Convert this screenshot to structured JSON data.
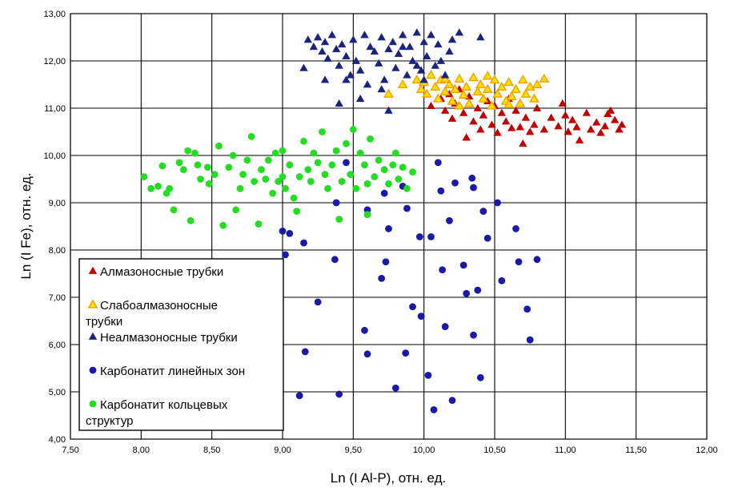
{
  "chart_data": {
    "type": "scatter",
    "xlabel": "Ln (I Al-P), отн. ед.",
    "ylabel": "Ln (I Fe), отн. ед.",
    "xlim": [
      7.5,
      12.0
    ],
    "ylim": [
      4.0,
      13.0
    ],
    "x_ticks": [
      "7,50",
      "8,00",
      "8,50",
      "9,00",
      "9,50",
      "10,00",
      "10,50",
      "11,00",
      "11,50",
      "12,00"
    ],
    "y_ticks": [
      "4,00",
      "5,00",
      "6,00",
      "7,00",
      "8,00",
      "9,00",
      "10,00",
      "11,00",
      "12,00",
      "13,00"
    ],
    "grid": true,
    "legend_position": "bottom-left",
    "series": [
      {
        "name": "Алмазоносные трубки",
        "marker": "triangle",
        "color": "#c00000",
        "points": [
          [
            10.05,
            11.05
          ],
          [
            10.12,
            11.2
          ],
          [
            10.15,
            10.95
          ],
          [
            10.18,
            11.3
          ],
          [
            10.2,
            10.78
          ],
          [
            10.22,
            11.1
          ],
          [
            10.25,
            11.4
          ],
          [
            10.28,
            10.9
          ],
          [
            10.3,
            10.38
          ],
          [
            10.32,
            11.25
          ],
          [
            10.35,
            10.72
          ],
          [
            10.38,
            11.0
          ],
          [
            10.4,
            10.55
          ],
          [
            10.42,
            10.85
          ],
          [
            10.45,
            11.15
          ],
          [
            10.48,
            10.65
          ],
          [
            10.5,
            11.05
          ],
          [
            10.52,
            10.48
          ],
          [
            10.55,
            10.9
          ],
          [
            10.58,
            10.72
          ],
          [
            10.6,
            11.2
          ],
          [
            10.62,
            10.58
          ],
          [
            10.65,
            10.95
          ],
          [
            10.68,
            10.6
          ],
          [
            10.7,
            10.25
          ],
          [
            10.72,
            10.8
          ],
          [
            10.75,
            10.5
          ],
          [
            10.78,
            10.65
          ],
          [
            10.8,
            11.0
          ],
          [
            10.85,
            10.55
          ],
          [
            10.9,
            10.8
          ],
          [
            10.95,
            10.62
          ],
          [
            10.98,
            11.1
          ],
          [
            11.0,
            10.85
          ],
          [
            11.02,
            10.5
          ],
          [
            11.05,
            10.75
          ],
          [
            11.08,
            10.6
          ],
          [
            11.1,
            10.32
          ],
          [
            11.15,
            10.9
          ],
          [
            11.18,
            10.55
          ],
          [
            11.22,
            10.7
          ],
          [
            11.25,
            10.48
          ],
          [
            11.28,
            10.62
          ],
          [
            11.3,
            10.88
          ],
          [
            11.32,
            10.95
          ],
          [
            11.35,
            10.75
          ],
          [
            11.38,
            10.55
          ],
          [
            11.4,
            10.65
          ]
        ]
      },
      {
        "name": "Слабоалмазоносные трубки",
        "marker": "triangle-open",
        "color": "#f0a000",
        "fill": "#ffe000",
        "points": [
          [
            9.95,
            11.6
          ],
          [
            9.98,
            11.4
          ],
          [
            10.0,
            11.55
          ],
          [
            10.02,
            11.3
          ],
          [
            10.05,
            11.7
          ],
          [
            10.08,
            11.45
          ],
          [
            10.1,
            11.2
          ],
          [
            10.12,
            11.6
          ],
          [
            10.15,
            11.35
          ],
          [
            10.18,
            11.5
          ],
          [
            10.2,
            11.15
          ],
          [
            10.22,
            11.4
          ],
          [
            10.25,
            11.62
          ],
          [
            10.28,
            11.28
          ],
          [
            10.3,
            11.45
          ],
          [
            10.32,
            11.1
          ],
          [
            10.35,
            11.65
          ],
          [
            10.38,
            11.35
          ],
          [
            10.4,
            11.5
          ],
          [
            10.42,
            11.2
          ],
          [
            10.45,
            11.4
          ],
          [
            10.48,
            11.05
          ],
          [
            10.5,
            11.6
          ],
          [
            10.52,
            11.3
          ],
          [
            10.55,
            11.45
          ],
          [
            10.58,
            11.15
          ],
          [
            10.6,
            11.55
          ],
          [
            10.62,
            11.25
          ],
          [
            10.65,
            11.4
          ],
          [
            10.68,
            11.1
          ],
          [
            10.7,
            11.6
          ],
          [
            10.72,
            11.3
          ],
          [
            10.75,
            11.45
          ],
          [
            10.78,
            11.2
          ],
          [
            10.8,
            11.5
          ],
          [
            10.85,
            11.62
          ],
          [
            9.85,
            11.5
          ],
          [
            9.75,
            11.3
          ],
          [
            10.6,
            11.08
          ],
          [
            10.45,
            11.68
          ],
          [
            10.25,
            11.05
          ],
          [
            10.15,
            11.62
          ]
        ]
      },
      {
        "name": "Неалмазоносные трубки",
        "marker": "triangle",
        "color": "#1a237e",
        "points": [
          [
            9.18,
            12.45
          ],
          [
            9.22,
            12.3
          ],
          [
            9.25,
            12.5
          ],
          [
            9.28,
            12.2
          ],
          [
            9.3,
            12.4
          ],
          [
            9.32,
            12.05
          ],
          [
            9.35,
            12.55
          ],
          [
            9.38,
            12.25
          ],
          [
            9.4,
            11.9
          ],
          [
            9.42,
            12.35
          ],
          [
            9.45,
            12.1
          ],
          [
            9.48,
            11.7
          ],
          [
            9.5,
            12.45
          ],
          [
            9.52,
            12.0
          ],
          [
            9.55,
            11.8
          ],
          [
            9.58,
            12.55
          ],
          [
            9.6,
            11.5
          ],
          [
            9.62,
            12.3
          ],
          [
            9.65,
            12.2
          ],
          [
            9.68,
            11.95
          ],
          [
            9.7,
            12.5
          ],
          [
            9.72,
            11.6
          ],
          [
            9.75,
            12.25
          ],
          [
            9.78,
            12.4
          ],
          [
            9.8,
            11.85
          ],
          [
            9.82,
            12.15
          ],
          [
            9.85,
            12.55
          ],
          [
            9.88,
            11.7
          ],
          [
            9.9,
            12.3
          ],
          [
            9.92,
            12.0
          ],
          [
            9.95,
            12.6
          ],
          [
            9.98,
            11.8
          ],
          [
            10.0,
            12.4
          ],
          [
            10.02,
            12.1
          ],
          [
            10.05,
            12.55
          ],
          [
            10.08,
            11.9
          ],
          [
            10.1,
            12.35
          ],
          [
            10.12,
            12.0
          ],
          [
            10.15,
            11.7
          ],
          [
            10.18,
            12.2
          ],
          [
            10.2,
            12.45
          ],
          [
            10.25,
            12.6
          ],
          [
            10.4,
            12.5
          ],
          [
            9.3,
            11.6
          ],
          [
            9.4,
            11.1
          ],
          [
            9.55,
            11.2
          ],
          [
            9.7,
            11.4
          ],
          [
            9.75,
            10.95
          ],
          [
            9.15,
            11.85
          ],
          [
            9.45,
            11.6
          ],
          [
            9.85,
            12.3
          ],
          [
            10.0,
            11.6
          ],
          [
            9.95,
            11.9
          ]
        ]
      },
      {
        "name": "Карбонатит линейных зон",
        "marker": "circle",
        "color": "#1a1aa8",
        "points": [
          [
            9.0,
            8.4
          ],
          [
            9.02,
            7.9
          ],
          [
            9.05,
            8.35
          ],
          [
            9.12,
            4.92
          ],
          [
            9.15,
            8.15
          ],
          [
            9.16,
            5.85
          ],
          [
            9.25,
            6.9
          ],
          [
            9.37,
            7.8
          ],
          [
            9.38,
            9.0
          ],
          [
            9.4,
            4.95
          ],
          [
            9.45,
            9.85
          ],
          [
            9.58,
            6.3
          ],
          [
            9.6,
            8.85
          ],
          [
            9.6,
            5.8
          ],
          [
            9.7,
            7.4
          ],
          [
            9.72,
            9.2
          ],
          [
            9.73,
            7.75
          ],
          [
            9.75,
            8.45
          ],
          [
            9.8,
            5.08
          ],
          [
            9.85,
            9.35
          ],
          [
            9.87,
            5.82
          ],
          [
            9.88,
            8.88
          ],
          [
            9.92,
            6.8
          ],
          [
            9.97,
            8.28
          ],
          [
            9.98,
            6.6
          ],
          [
            10.03,
            5.35
          ],
          [
            10.05,
            8.28
          ],
          [
            10.07,
            4.62
          ],
          [
            10.1,
            9.85
          ],
          [
            10.12,
            9.25
          ],
          [
            10.13,
            7.58
          ],
          [
            10.15,
            6.38
          ],
          [
            10.18,
            8.62
          ],
          [
            10.2,
            4.82
          ],
          [
            10.22,
            9.42
          ],
          [
            10.28,
            7.68
          ],
          [
            10.3,
            7.08
          ],
          [
            10.34,
            9.52
          ],
          [
            10.35,
            9.32
          ],
          [
            10.35,
            6.2
          ],
          [
            10.38,
            7.15
          ],
          [
            10.4,
            5.3
          ],
          [
            10.42,
            8.82
          ],
          [
            10.45,
            8.25
          ],
          [
            10.52,
            9.0
          ],
          [
            10.55,
            7.35
          ],
          [
            10.65,
            8.45
          ],
          [
            10.67,
            7.75
          ],
          [
            10.73,
            6.75
          ],
          [
            10.75,
            6.1
          ],
          [
            10.8,
            7.8
          ]
        ]
      },
      {
        "name": "Карбонатит кольцевых структур",
        "marker": "circle",
        "color": "#22dd22",
        "points": [
          [
            8.02,
            9.55
          ],
          [
            8.07,
            9.3
          ],
          [
            8.12,
            9.35
          ],
          [
            8.15,
            9.78
          ],
          [
            8.18,
            9.2
          ],
          [
            8.2,
            9.3
          ],
          [
            8.23,
            8.85
          ],
          [
            8.27,
            9.85
          ],
          [
            8.3,
            9.7
          ],
          [
            8.33,
            10.1
          ],
          [
            8.35,
            8.62
          ],
          [
            8.38,
            10.05
          ],
          [
            8.4,
            9.8
          ],
          [
            8.42,
            9.5
          ],
          [
            8.47,
            9.75
          ],
          [
            8.48,
            9.4
          ],
          [
            8.52,
            9.6
          ],
          [
            8.55,
            10.2
          ],
          [
            8.58,
            8.52
          ],
          [
            8.62,
            9.75
          ],
          [
            8.65,
            10.0
          ],
          [
            8.67,
            8.85
          ],
          [
            8.7,
            9.3
          ],
          [
            8.72,
            9.6
          ],
          [
            8.75,
            9.9
          ],
          [
            8.78,
            10.4
          ],
          [
            8.8,
            9.45
          ],
          [
            8.83,
            8.55
          ],
          [
            8.85,
            9.7
          ],
          [
            8.88,
            9.5
          ],
          [
            8.9,
            9.9
          ],
          [
            8.93,
            9.2
          ],
          [
            8.95,
            10.05
          ],
          [
            8.97,
            9.45
          ],
          [
            9.0,
            9.55
          ],
          [
            9.02,
            9.3
          ],
          [
            9.05,
            9.8
          ],
          [
            9.08,
            9.1
          ],
          [
            9.1,
            8.82
          ],
          [
            9.12,
            9.55
          ],
          [
            9.15,
            10.3
          ],
          [
            9.18,
            9.7
          ],
          [
            9.2,
            9.45
          ],
          [
            9.22,
            10.05
          ],
          [
            9.25,
            9.85
          ],
          [
            9.28,
            10.5
          ],
          [
            9.3,
            9.6
          ],
          [
            9.32,
            9.3
          ],
          [
            9.35,
            9.8
          ],
          [
            9.38,
            10.1
          ],
          [
            9.4,
            8.65
          ],
          [
            9.42,
            9.45
          ],
          [
            9.45,
            10.25
          ],
          [
            9.48,
            9.6
          ],
          [
            9.5,
            10.55
          ],
          [
            9.52,
            9.3
          ],
          [
            9.55,
            10.05
          ],
          [
            9.58,
            9.8
          ],
          [
            9.6,
            9.4
          ],
          [
            9.62,
            10.35
          ],
          [
            9.65,
            9.55
          ],
          [
            9.68,
            9.9
          ],
          [
            9.72,
            9.7
          ],
          [
            9.75,
            9.4
          ],
          [
            9.78,
            9.8
          ],
          [
            9.8,
            10.05
          ],
          [
            9.82,
            9.5
          ],
          [
            9.85,
            9.75
          ],
          [
            9.88,
            9.3
          ],
          [
            9.92,
            9.65
          ],
          [
            9.6,
            8.75
          ],
          [
            9.0,
            10.1
          ]
        ]
      }
    ]
  }
}
